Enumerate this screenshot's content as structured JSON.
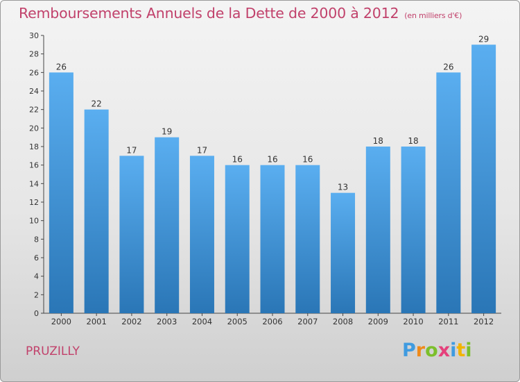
{
  "header": {
    "title": "Remboursements Annuels de la Dette de 2000 à 2012",
    "unit": "(en milliers d'€)"
  },
  "commune": "PRUZILLY",
  "logo": {
    "text": "Proxiti",
    "colors": [
      "#3f9be0",
      "#ef8a1a",
      "#7cbf2b",
      "#e5407b",
      "#3f9be0",
      "#f2b400",
      "#7cbf2b"
    ]
  },
  "chart_data": {
    "type": "bar",
    "title": "Remboursements Annuels de la Dette de 2000 à 2012",
    "subtitle": "(en milliers d'€)",
    "xlabel": "",
    "ylabel": "",
    "categories": [
      "2000",
      "2001",
      "2002",
      "2003",
      "2004",
      "2005",
      "2006",
      "2007",
      "2008",
      "2009",
      "2010",
      "2011",
      "2012"
    ],
    "values": [
      26,
      22,
      17,
      19,
      17,
      16,
      16,
      16,
      13,
      18,
      18,
      26,
      29
    ],
    "ylim": [
      0,
      30
    ],
    "yticks": [
      0,
      2,
      4,
      6,
      8,
      10,
      12,
      14,
      16,
      18,
      20,
      22,
      24,
      26,
      28,
      30
    ],
    "grid": false,
    "legend": "none",
    "bar_color_top": "#5aaef0",
    "bar_color_bottom": "#2a76b6"
  }
}
